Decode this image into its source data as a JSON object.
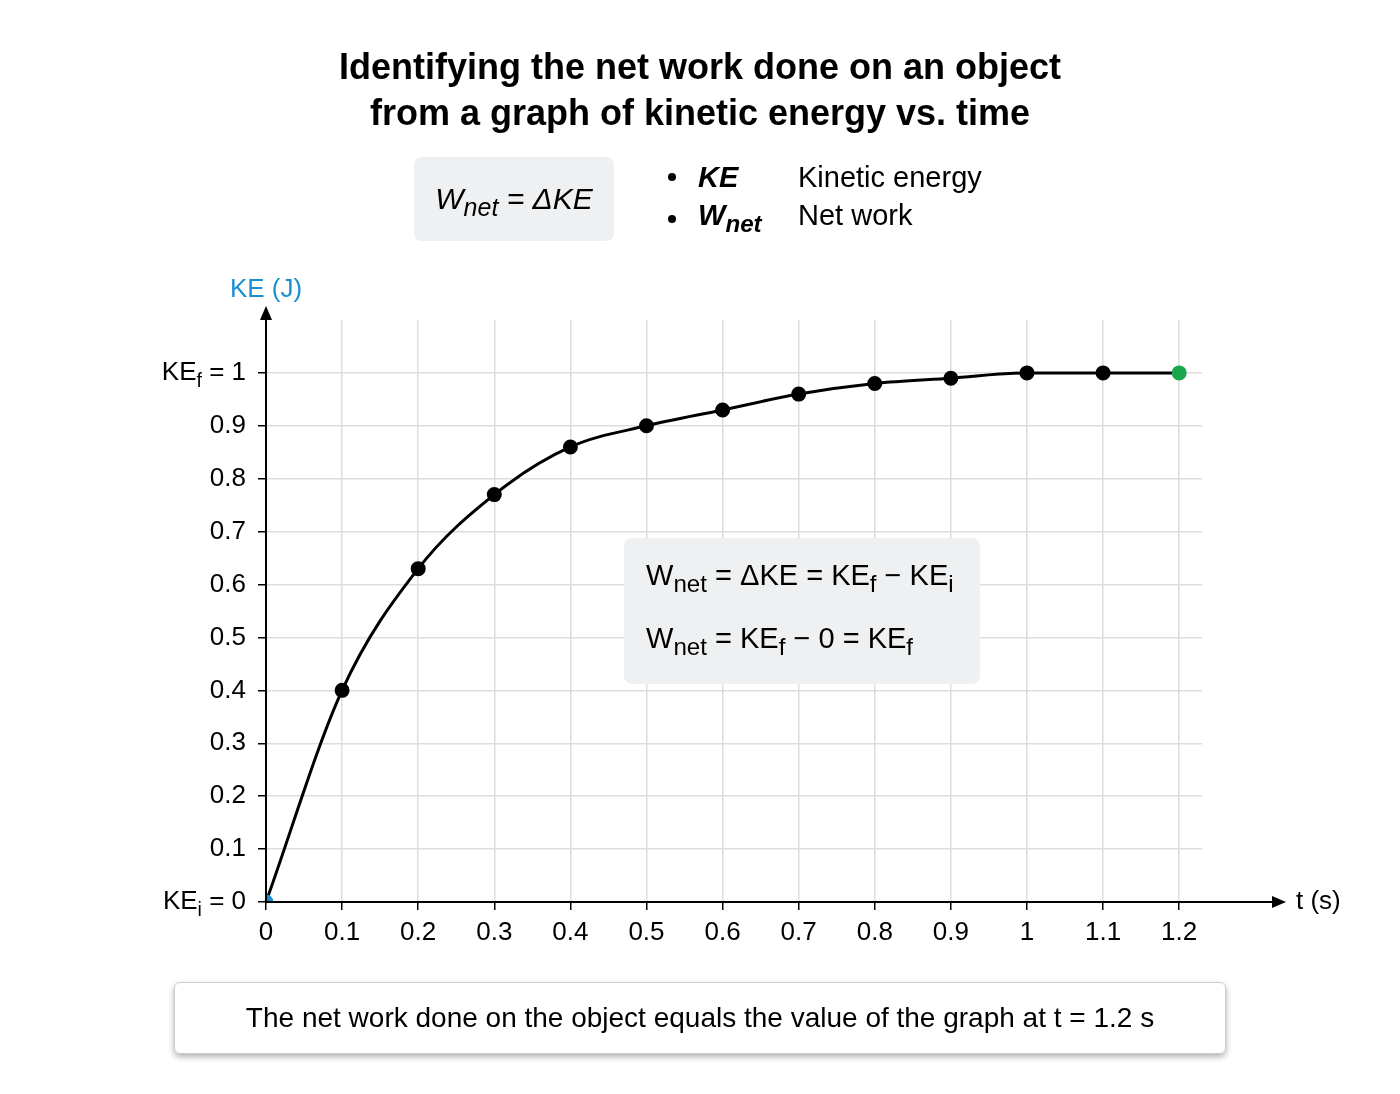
{
  "chart_data": {
    "type": "line",
    "title": "Identifying the net work done on an object\nfrom a graph of kinetic energy vs. time",
    "xlabel": "t (s)",
    "ylabel": "KE (J)",
    "x": [
      0,
      0.1,
      0.2,
      0.3,
      0.4,
      0.5,
      0.6,
      0.7,
      0.8,
      0.9,
      1,
      1.1,
      1.2
    ],
    "series": [
      {
        "color": "#000000",
        "values": [
          0,
          0.4,
          0.63,
          0.77,
          0.86,
          0.9,
          0.93,
          0.96,
          0.98,
          0.99,
          1,
          1,
          1
        ],
        "colors": [
          "#1a8fd0",
          "#000000",
          "#000000",
          "#000000",
          "#000000",
          "#000000",
          "#000000",
          "#000000",
          "#000000",
          "#000000",
          "#000000",
          "#000000",
          "#1aa64b"
        ]
      }
    ],
    "xlim": [
      0,
      1.23
    ],
    "xticks": [
      0,
      0.1,
      0.2,
      0.3,
      0.4,
      0.5,
      0.6,
      0.7,
      0.8,
      0.9,
      1,
      1.1,
      1.2
    ],
    "ylim": [
      0,
      1.1
    ],
    "yticks": [
      {
        "value": 0,
        "label": "KE$_{i}$ = 0"
      },
      0.1,
      0.2,
      0.3,
      0.4,
      0.5,
      0.6,
      0.7,
      0.8,
      0.9,
      {
        "value": 1,
        "label": "KE$_{f}$ = 1"
      }
    ],
    "grid": true,
    "legend": false,
    "marker": "circle",
    "line_style": "solid",
    "annotations": [
      "W$_{net}$ = ΔKE",
      "KE",
      "Kinetic energy",
      "W$_{net}$",
      "Net work",
      "W$_{net}$ = ΔKE = KE$_{f}$ − KE$_{i}$",
      "W$_{net}$ = KE$_{f}$ − 0 = KE$_{f}$",
      "The net work done on the object equals the value of the graph at t = 1.2 s"
    ]
  }
}
